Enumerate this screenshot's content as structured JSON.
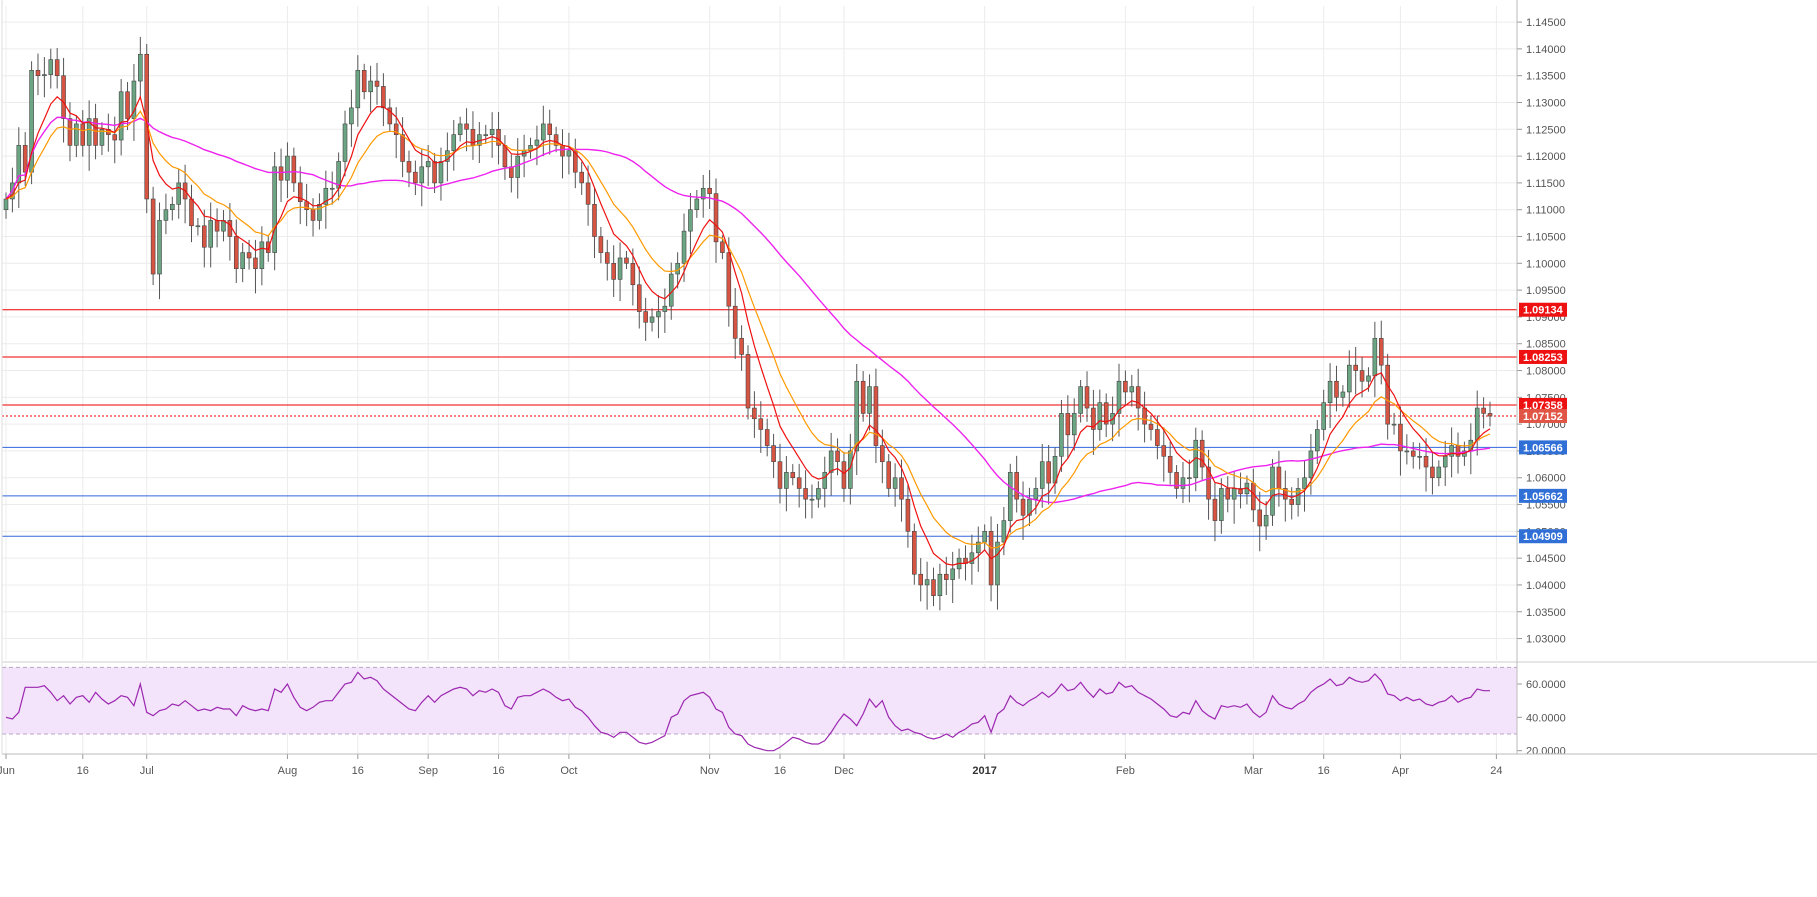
{
  "colors": {
    "up": "#6ba583",
    "down": "#d75442",
    "wick": "#555555",
    "ema_fast": "#ee1111",
    "ema_slow": "#ff9900",
    "sma_long": "#ee22ee",
    "resistance": "#ee0000",
    "support": "#3366dd",
    "rsi_line": "#9c27b0",
    "rsi_band": "#f3e3fb"
  },
  "chart_data": [
    {
      "type": "candlestick",
      "title": "",
      "ylim": [
        1.026,
        1.148
      ],
      "y_ticks": [
        "1.14500",
        "1.14000",
        "1.13500",
        "1.13000",
        "1.12500",
        "1.12000",
        "1.11500",
        "1.11000",
        "1.10500",
        "1.10000",
        "1.09500",
        "1.09000",
        "1.08500",
        "1.08000",
        "1.07500",
        "1.07000",
        "1.06500",
        "1.06000",
        "1.05500",
        "1.05000",
        "1.04500",
        "1.04000",
        "1.03500",
        "1.03000"
      ],
      "x_labels": [
        {
          "text": "Jun",
          "bar": 0
        },
        {
          "text": "16",
          "bar": 12
        },
        {
          "text": "Jul",
          "bar": 22
        },
        {
          "text": "Aug",
          "bar": 44
        },
        {
          "text": "16",
          "bar": 55
        },
        {
          "text": "Sep",
          "bar": 66
        },
        {
          "text": "16",
          "bar": 77
        },
        {
          "text": "Oct",
          "bar": 88
        },
        {
          "text": "Nov",
          "bar": 110
        },
        {
          "text": "16",
          "bar": 121
        },
        {
          "text": "Dec",
          "bar": 131
        },
        {
          "text": "2017",
          "bar": 153,
          "bold": true
        },
        {
          "text": "Feb",
          "bar": 175
        },
        {
          "text": "Mar",
          "bar": 195
        },
        {
          "text": "16",
          "bar": 206
        },
        {
          "text": "Apr",
          "bar": 218
        },
        {
          "text": "24",
          "bar": 233
        }
      ],
      "bars": 233,
      "ohlc_close": [
        1.112,
        1.115,
        1.122,
        1.117,
        1.136,
        1.135,
        1.1352,
        1.138,
        1.135,
        1.127,
        1.122,
        1.126,
        1.122,
        1.127,
        1.122,
        1.125,
        1.124,
        1.123,
        1.132,
        1.127,
        1.134,
        1.139,
        1.112,
        1.098,
        1.108,
        1.11,
        1.111,
        1.115,
        1.112,
        1.107,
        1.107,
        1.103,
        1.108,
        1.106,
        1.108,
        1.105,
        1.099,
        1.102,
        1.101,
        1.099,
        1.104,
        1.102,
        1.118,
        1.1155,
        1.12,
        1.115,
        1.1115,
        1.11,
        1.108,
        1.111,
        1.114,
        1.114,
        1.119,
        1.126,
        1.129,
        1.136,
        1.132,
        1.134,
        1.133,
        1.129,
        1.126,
        1.124,
        1.119,
        1.117,
        1.115,
        1.118,
        1.119,
        1.115,
        1.119,
        1.121,
        1.124,
        1.126,
        1.125,
        1.122,
        1.124,
        1.124,
        1.125,
        1.122,
        1.118,
        1.116,
        1.12,
        1.121,
        1.122,
        1.123,
        1.126,
        1.124,
        1.122,
        1.12,
        1.121,
        1.117,
        1.115,
        1.111,
        1.105,
        1.102,
        1.1,
        1.097,
        1.101,
        1.1,
        1.096,
        1.091,
        1.089,
        1.09,
        1.091,
        1.092,
        1.098,
        1.1,
        1.106,
        1.11,
        1.112,
        1.114,
        1.113,
        1.104,
        1.102,
        1.092,
        1.086,
        1.083,
        1.073,
        1.071,
        1.069,
        1.066,
        1.063,
        1.058,
        1.061,
        1.06,
        1.058,
        1.056,
        1.056,
        1.058,
        1.061,
        1.065,
        1.063,
        1.058,
        1.065,
        1.078,
        1.072,
        1.077,
        1.066,
        1.063,
        1.058,
        1.06,
        1.056,
        1.05,
        1.042,
        1.04,
        1.041,
        1.038,
        1.042,
        1.041,
        1.043,
        1.045,
        1.044,
        1.046,
        1.048,
        1.05,
        1.04,
        1.048,
        1.052,
        1.061,
        1.056,
        1.053,
        1.056,
        1.058,
        1.063,
        1.059,
        1.064,
        1.072,
        1.068,
        1.072,
        1.077,
        1.073,
        1.069,
        1.074,
        1.07,
        1.072,
        1.078,
        1.076,
        1.077,
        1.073,
        1.07,
        1.069,
        1.066,
        1.064,
        1.061,
        1.058,
        1.06,
        1.06,
        1.067,
        1.062,
        1.056,
        1.052,
        1.058,
        1.056,
        1.058,
        1.057,
        1.059,
        1.054,
        1.051,
        1.053,
        1.062,
        1.058,
        1.056,
        1.055,
        1.058,
        1.06,
        1.065,
        1.069,
        1.074,
        1.078,
        1.075,
        1.076,
        1.081,
        1.08,
        1.078,
        1.079,
        1.086,
        1.081,
        1.07,
        1.07,
        1.065,
        1.065,
        1.064,
        1.064,
        1.062,
        1.06,
        1.062,
        1.064,
        1.066,
        1.064,
        1.065,
        1.067,
        1.073,
        1.072,
        1.0715
      ],
      "horizontal_levels": [
        {
          "label": "1.09134",
          "value": 1.09134,
          "kind": "resistance"
        },
        {
          "label": "1.08253",
          "value": 1.08253,
          "kind": "resistance"
        },
        {
          "label": "1.07358",
          "value": 1.07358,
          "kind": "resistance"
        },
        {
          "label": "1.07152",
          "value": 1.07152,
          "kind": "current"
        },
        {
          "label": "1.06566",
          "value": 1.06566,
          "kind": "support"
        },
        {
          "label": "1.05662",
          "value": 1.05662,
          "kind": "support"
        },
        {
          "label": "1.04909",
          "value": 1.04909,
          "kind": "support"
        }
      ],
      "indicators": [
        "EMA fast (red)",
        "EMA slow (orange)",
        "SMA long (magenta)"
      ]
    },
    {
      "type": "line",
      "title": "",
      "ylim": [
        18,
        72
      ],
      "y_ticks": [
        "60.0000",
        "40.0000",
        "20.0000"
      ],
      "band": [
        30,
        70
      ],
      "values": [
        40,
        39,
        43,
        58,
        58,
        58,
        59,
        55,
        50,
        53,
        48,
        52,
        53,
        49,
        55,
        51,
        48,
        50,
        53,
        52,
        47,
        60,
        43,
        41,
        44,
        45,
        48,
        47,
        50,
        47,
        44,
        45,
        44,
        46,
        45,
        45,
        41,
        47,
        45,
        44,
        45,
        44,
        57,
        55,
        60,
        52,
        46,
        44,
        46,
        49,
        50,
        50,
        55,
        60,
        61,
        67,
        63,
        64,
        62,
        57,
        54,
        51,
        48,
        45,
        44,
        49,
        53,
        49,
        53,
        55,
        57,
        58,
        57,
        53,
        56,
        55,
        57,
        55,
        47,
        45,
        52,
        53,
        53,
        55,
        57,
        55,
        52,
        50,
        51,
        46,
        44,
        40,
        35,
        31,
        30,
        28,
        31,
        31,
        28,
        25,
        24,
        25,
        27,
        29,
        40,
        42,
        50,
        53,
        54,
        55,
        52,
        45,
        43,
        34,
        30,
        29,
        24,
        22,
        21,
        20,
        20,
        22,
        25,
        28,
        27,
        25,
        24,
        24,
        26,
        31,
        37,
        42,
        39,
        35,
        42,
        51,
        46,
        50,
        40,
        35,
        32,
        33,
        31,
        30,
        28,
        27,
        28,
        30,
        28,
        31,
        33,
        36,
        37,
        41,
        31,
        42,
        45,
        53,
        49,
        47,
        50,
        52,
        55,
        52,
        55,
        60,
        56,
        57,
        61,
        56,
        52,
        57,
        54,
        55,
        61,
        58,
        59,
        55,
        53,
        51,
        48,
        45,
        41,
        40,
        43,
        42,
        50,
        44,
        41,
        39,
        47,
        46,
        47,
        46,
        48,
        43,
        40,
        43,
        53,
        48,
        46,
        45,
        48,
        50,
        55,
        58,
        60,
        63,
        59,
        60,
        64,
        62,
        61,
        62,
        66,
        62,
        54,
        53,
        50,
        52,
        50,
        51,
        48,
        47,
        49,
        50,
        53,
        49,
        51,
        52,
        57,
        56,
        56
      ]
    }
  ]
}
